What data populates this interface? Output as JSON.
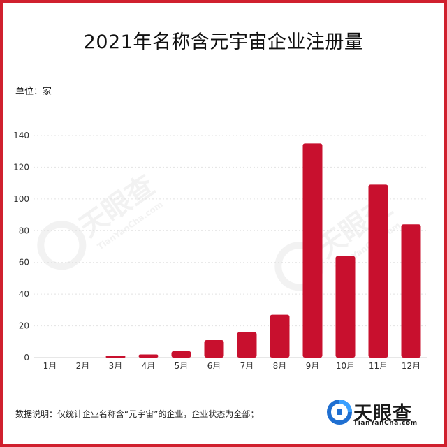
{
  "header": {
    "title": "2021年名称含元宇宙企业注册量",
    "unit_label": "单位：家"
  },
  "footer": {
    "note": "数据说明：仅统计企业名称含“元宇宙”的企业，企业状态为全部；",
    "logo_name": "天眼查",
    "logo_domain": "TianYanCha.com"
  },
  "watermark": {
    "name": "天眼查",
    "domain": "TianYanCha.com"
  },
  "colors": {
    "bar": "#c8102e",
    "frame": "#d0202e",
    "grid": "#e2e2e2"
  },
  "chart_data": {
    "type": "bar",
    "title": "2021年名称含元宇宙企业注册量",
    "ylabel": "单位：家",
    "categories": [
      "1月",
      "2月",
      "3月",
      "4月",
      "5月",
      "6月",
      "7月",
      "8月",
      "9月",
      "10月",
      "11月",
      "12月"
    ],
    "values": [
      0,
      0,
      1,
      2,
      4,
      11,
      16,
      27,
      135,
      64,
      109,
      84
    ],
    "ylim": [
      0,
      140
    ],
    "yticks": [
      0,
      20,
      40,
      60,
      80,
      100,
      120,
      140
    ],
    "grid": true,
    "legend": "none"
  }
}
